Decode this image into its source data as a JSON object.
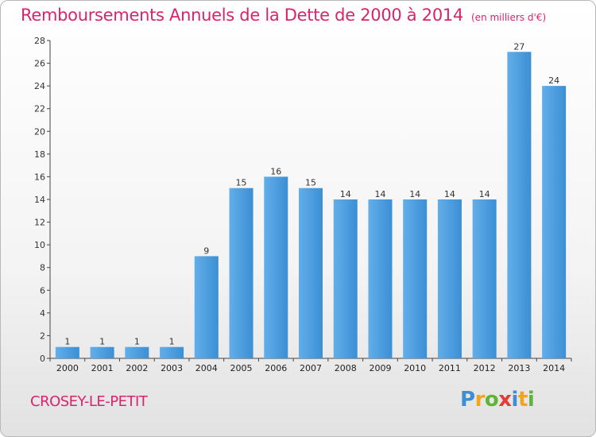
{
  "header": {
    "title": "Remboursements Annuels de la Dette de 2000 à 2014",
    "unit": "(en milliers d'€)"
  },
  "footer": {
    "commune": "CROSEY-LE-PETIT",
    "logo_letters": [
      "P",
      "r",
      "o",
      "x",
      "i",
      "t",
      "i"
    ]
  },
  "chart_data": {
    "type": "bar",
    "title": "Remboursements Annuels de la Dette de 2000 à 2014",
    "subtitle": "(en milliers d'€)",
    "xlabel": "",
    "ylabel": "",
    "categories": [
      "2000",
      "2001",
      "2002",
      "2003",
      "2004",
      "2005",
      "2006",
      "2007",
      "2008",
      "2009",
      "2010",
      "2011",
      "2012",
      "2013",
      "2014"
    ],
    "values": [
      1,
      1,
      1,
      1,
      9,
      15,
      16,
      15,
      14,
      14,
      14,
      14,
      14,
      27,
      24
    ],
    "ylim": [
      0,
      28
    ],
    "yticks": [
      0,
      2,
      4,
      6,
      8,
      10,
      12,
      14,
      16,
      18,
      20,
      22,
      24,
      26,
      28
    ],
    "grid": false,
    "bar_color": "#3b8fd4",
    "bar_color_light": "#62aeea"
  }
}
